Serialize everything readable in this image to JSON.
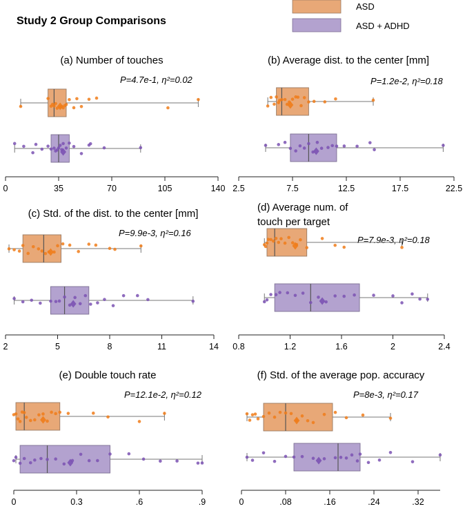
{
  "figure_title": "Study 2 Group Comparisons",
  "legend": [
    {
      "label": "ASD",
      "color": "#e8a877"
    },
    {
      "label": "ASD + ADHD",
      "color": "#b3a2cf"
    }
  ],
  "colors": {
    "asd_fill": "#e8a877",
    "asd_edge": "#9a7a63",
    "asd_point": "#f07c1a",
    "adhd_fill": "#b3a2cf",
    "adhd_edge": "#7d6f94",
    "adhd_point": "#7b52b3",
    "whisker": "#777777",
    "axis": "#222222"
  },
  "chart_data": [
    {
      "type": "box",
      "title": "(a) Number of touches",
      "stat_text": "P=4.7e-1, η²=0.02",
      "xlim": [
        0,
        140
      ],
      "ticks": [
        0,
        35,
        70,
        105,
        140
      ],
      "tick_labels": [
        "0",
        "35",
        "70",
        "105",
        "140"
      ],
      "series": [
        {
          "name": "ASD",
          "whisker_low": 10,
          "q1": 28,
          "median": 32,
          "q3": 40,
          "whisker_high": 127,
          "mean": 36,
          "points": [
            10,
            28,
            30,
            31,
            32,
            33,
            34,
            36,
            37,
            38,
            39,
            40,
            42,
            45,
            47,
            50,
            55,
            60,
            107,
            127
          ]
        },
        {
          "name": "ASD + ADHD",
          "whisker_low": 6,
          "q1": 30,
          "median": 35,
          "q3": 42,
          "whisker_high": 89,
          "mean": 38,
          "points": [
            6,
            12,
            18,
            20,
            24,
            28,
            30,
            32,
            33,
            34,
            35,
            36,
            37,
            38,
            40,
            42,
            45,
            50,
            55,
            56,
            65,
            89
          ]
        }
      ]
    },
    {
      "type": "box",
      "title": "(b) Average dist. to the center  [mm]",
      "stat_text": "P=1.2e-2, η²=0.18",
      "xlim": [
        2.5,
        22.5
      ],
      "ticks": [
        2.5,
        7.5,
        12.5,
        17.5,
        22.5
      ],
      "tick_labels": [
        "2.5",
        "7.5",
        "12.5",
        "17.5",
        "22.5"
      ],
      "series": [
        {
          "name": "ASD",
          "whisker_low": 5.2,
          "q1": 6.0,
          "median": 6.5,
          "q3": 9.0,
          "whisker_high": 15.0,
          "mean": 7.3,
          "points": [
            5.2,
            5.5,
            5.8,
            6.0,
            6.2,
            6.3,
            6.5,
            6.8,
            7.0,
            7.2,
            7.5,
            7.8,
            8.0,
            8.3,
            8.6,
            9.0,
            9.5,
            10.5,
            11.5,
            15.0
          ]
        },
        {
          "name": "ASD + ADHD",
          "whisker_low": 5.0,
          "q1": 7.3,
          "median": 9.0,
          "q3": 11.6,
          "whisker_high": 21.5,
          "mean": 9.7,
          "points": [
            5.0,
            6.2,
            6.8,
            7.3,
            7.8,
            8.2,
            8.6,
            9.0,
            9.4,
            9.8,
            10.2,
            10.8,
            11.2,
            11.6,
            12.3,
            13.5,
            14.7,
            15.1,
            21.5
          ]
        }
      ]
    },
    {
      "type": "box",
      "title": "(c) Std. of the dist. to the center  [mm]",
      "stat_text": "P=9.9e-3, η²=0.16",
      "xlim": [
        2,
        14
      ],
      "ticks": [
        2,
        5,
        8,
        11,
        14
      ],
      "tick_labels": [
        "2",
        "5",
        "8",
        "11",
        "14"
      ],
      "series": [
        {
          "name": "ASD",
          "whisker_low": 2.2,
          "q1": 3.0,
          "median": 4.2,
          "q3": 5.2,
          "whisker_high": 9.8,
          "mean": 4.6,
          "points": [
            2.2,
            2.5,
            2.8,
            3.0,
            3.3,
            3.6,
            3.9,
            4.1,
            4.3,
            4.5,
            4.8,
            5.0,
            5.3,
            5.7,
            6.2,
            6.8,
            7.2,
            8.0,
            8.3,
            9.8
          ]
        },
        {
          "name": "ASD + ADHD",
          "whisker_low": 2.5,
          "q1": 4.6,
          "median": 5.4,
          "q3": 6.8,
          "whisker_high": 12.8,
          "mean": 5.9,
          "points": [
            2.5,
            3.0,
            3.5,
            4.0,
            4.6,
            4.9,
            5.1,
            5.4,
            5.7,
            6.0,
            6.3,
            6.6,
            6.9,
            7.3,
            7.7,
            8.2,
            8.8,
            9.6,
            10.2,
            12.8
          ]
        }
      ]
    },
    {
      "type": "box",
      "title": "(d) Average num. of touch per target",
      "stat_text": "P=7.9e-3, η²=0.18",
      "xlim": [
        0.8,
        2.4
      ],
      "ticks": [
        0.8,
        1.2,
        1.6,
        2.0,
        2.4
      ],
      "tick_labels": [
        "0.8",
        "1.2",
        "1.6",
        "2",
        "2.4"
      ],
      "series": [
        {
          "name": "ASD",
          "whisker_low": 1.0,
          "q1": 1.02,
          "median": 1.08,
          "q3": 1.33,
          "whisker_high": 2.07,
          "mean": 1.24,
          "points": [
            1.0,
            1.01,
            1.02,
            1.03,
            1.05,
            1.07,
            1.09,
            1.11,
            1.13,
            1.16,
            1.19,
            1.22,
            1.25,
            1.28,
            1.33,
            1.45,
            1.55,
            1.62,
            2.07
          ]
        },
        {
          "name": "ASD + ADHD",
          "whisker_low": 1.0,
          "q1": 1.08,
          "median": 1.36,
          "q3": 1.74,
          "whisker_high": 2.27,
          "mean": 1.45,
          "points": [
            1.0,
            1.02,
            1.05,
            1.09,
            1.12,
            1.18,
            1.24,
            1.3,
            1.36,
            1.42,
            1.48,
            1.55,
            1.62,
            1.7,
            1.85,
            2.0,
            2.07,
            2.15,
            2.21,
            2.27
          ]
        }
      ]
    },
    {
      "type": "box",
      "title": "(e) Double touch rate",
      "stat_text": "P=12.1e-2, η²=0.12",
      "xlim": [
        0,
        0.9
      ],
      "ticks": [
        0,
        0.3,
        0.6,
        0.9
      ],
      "tick_labels": [
        "0",
        "0.3",
        ".6",
        ".9"
      ],
      "series": [
        {
          "name": "ASD",
          "whisker_low": 0.01,
          "q1": 0.01,
          "median": 0.05,
          "q3": 0.22,
          "whisker_high": 0.72,
          "mean": 0.14,
          "points": [
            0.0,
            0.01,
            0.02,
            0.03,
            0.04,
            0.05,
            0.06,
            0.08,
            0.1,
            0.12,
            0.14,
            0.16,
            0.18,
            0.2,
            0.22,
            0.26,
            0.38,
            0.45,
            0.6,
            0.72
          ]
        },
        {
          "name": "ASD + ADHD",
          "whisker_low": 0.01,
          "q1": 0.03,
          "median": 0.16,
          "q3": 0.46,
          "whisker_high": 0.9,
          "mean": 0.27,
          "points": [
            0.0,
            0.01,
            0.03,
            0.05,
            0.08,
            0.1,
            0.13,
            0.16,
            0.2,
            0.24,
            0.28,
            0.32,
            0.36,
            0.4,
            0.46,
            0.55,
            0.62,
            0.7,
            0.78,
            0.88,
            0.9
          ]
        }
      ]
    },
    {
      "type": "box",
      "title": "(f) Std. of the average pop. accuracy",
      "stat_text": "P=8e-3, η²=0.17",
      "xlim": [
        0,
        0.36
      ],
      "ticks": [
        0,
        0.08,
        0.16,
        0.24,
        0.32
      ],
      "tick_labels": [
        "0",
        ".08",
        ".16",
        ".24",
        ".32"
      ],
      "series": [
        {
          "name": "ASD",
          "whisker_low": 0.01,
          "q1": 0.04,
          "median": 0.08,
          "q3": 0.165,
          "whisker_high": 0.27,
          "mean": 0.1,
          "points": [
            0.01,
            0.015,
            0.02,
            0.025,
            0.03,
            0.04,
            0.05,
            0.06,
            0.07,
            0.08,
            0.09,
            0.1,
            0.11,
            0.12,
            0.13,
            0.15,
            0.17,
            0.19,
            0.22,
            0.27
          ]
        },
        {
          "name": "ASD + ADHD",
          "whisker_low": 0.01,
          "q1": 0.095,
          "median": 0.175,
          "q3": 0.215,
          "whisker_high": 0.36,
          "mean": 0.14,
          "points": [
            0.01,
            0.02,
            0.04,
            0.06,
            0.08,
            0.095,
            0.11,
            0.13,
            0.15,
            0.17,
            0.18,
            0.19,
            0.2,
            0.21,
            0.215,
            0.23,
            0.25,
            0.27,
            0.31,
            0.36
          ]
        }
      ]
    }
  ]
}
